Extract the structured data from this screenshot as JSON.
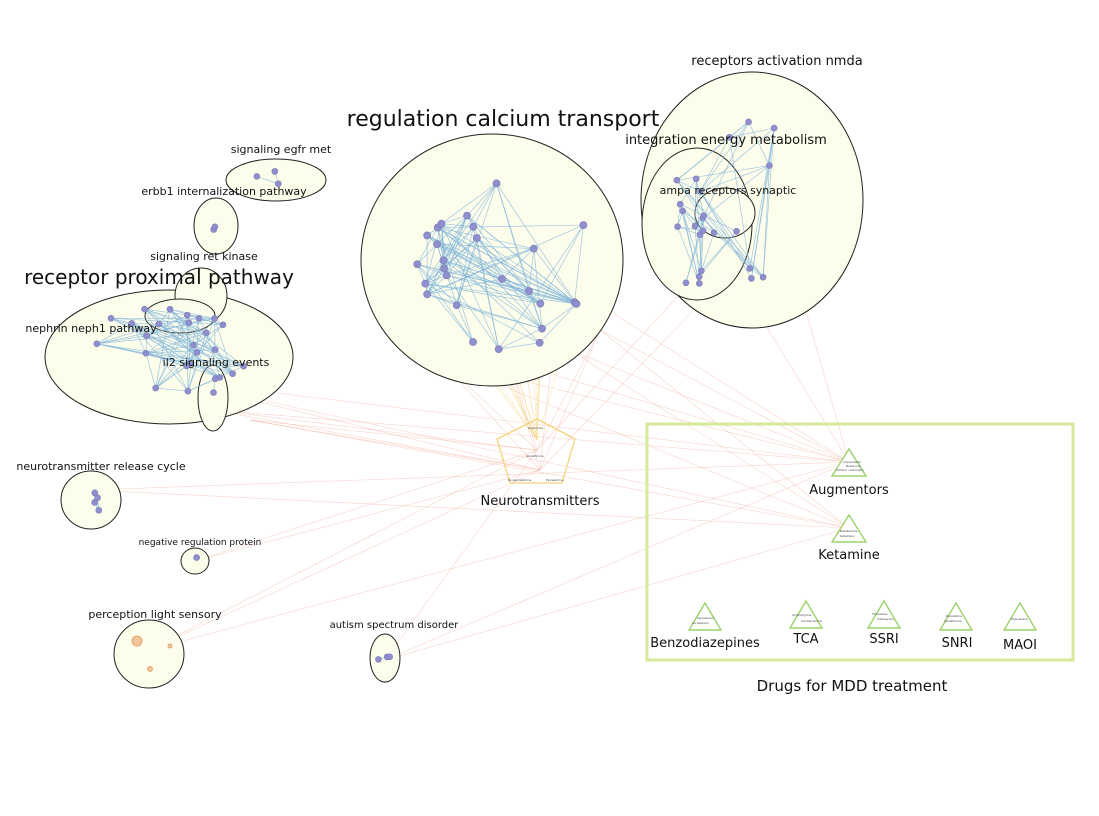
{
  "colors": {
    "cluster_fill": "#fdfdec",
    "cluster_stroke": "#222222",
    "gene_node": "#8f8fcf",
    "intra_edge": "#7fb4d8",
    "drug_edge": "#f2a08a",
    "neurotransmitter_stroke": "#f5d27a",
    "drug_box": "#d6ea9a",
    "drug_triangle": "#9bd26a",
    "perception_node": "#f4b483"
  },
  "clusters": {
    "receptors_activation_nmda": "receptors activation nmda",
    "regulation_calcium_transport": "regulation calcium transport",
    "integration_energy_metabolism": "integration energy metabolism",
    "ampa_receptors_synaptic": "ampa receptors synaptic",
    "signaling_egfr_met": "signaling egfr met",
    "erbb1_internalization_pathway": "erbb1 internalization pathway",
    "signaling_ret_kinase": "signaling ret kinase",
    "receptor_proximal_pathway": "receptor proximal pathway",
    "nephrin_neph1_pathway": "nephrin neph1 pathway",
    "il2_signaling_events": "il2 signaling events",
    "neurotransmitter_release_cycle": "neurotransmitter release cycle",
    "negative_regulation_protein": "negative regulation protein",
    "perception_light_sensory": "perception light sensory",
    "autism_spectrum_disorder": "autism spectrum disorder"
  },
  "neurotransmitters": {
    "label": "Neurotransmitters",
    "nodes": [
      "Dopamine",
      "Glutathione",
      "Norepinephrine",
      "Epinephrine"
    ]
  },
  "drugs": {
    "box_title": "Drugs for MDD treatment",
    "classes": [
      {
        "key": "augmentors",
        "label": "Augmentors",
        "members": [
          "Aripiprazole",
          "Buspirone",
          "Lithium carbonate"
        ]
      },
      {
        "key": "ketamine",
        "label": "Ketamine",
        "members": [
          "Esketamine",
          "Ketamine"
        ]
      },
      {
        "key": "benzodiazepines",
        "label": "Benzodiazepines",
        "members": [
          "Alprazolam",
          "Lorazepam"
        ]
      },
      {
        "key": "tca",
        "label": "TCA",
        "members": [
          "Amitriptyline",
          "Clomipramine"
        ]
      },
      {
        "key": "ssri",
        "label": "SSRI",
        "members": [
          "Fluoxetine",
          "Citalopram"
        ]
      },
      {
        "key": "snri",
        "label": "SNRI",
        "members": [
          "Duloxetine",
          "Venlafaxine"
        ]
      },
      {
        "key": "maoi",
        "label": "MAOI",
        "members": [
          "Phenelzine"
        ]
      }
    ]
  }
}
